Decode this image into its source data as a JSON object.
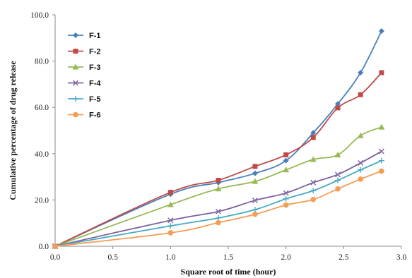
{
  "chart_data": {
    "type": "line",
    "title": "",
    "xlabel": "Square root of time (hour)",
    "ylabel": "Cumulative percentage of drug release",
    "xlim": [
      0,
      3
    ],
    "ylim": [
      0,
      100
    ],
    "x_ticks": [
      "0.0",
      "0.5",
      "1.0",
      "1.5",
      "2.0",
      "2.5",
      "3.0"
    ],
    "y_ticks": [
      "0.0",
      "20.0",
      "40.0",
      "60.0",
      "80.0",
      "100.0"
    ],
    "x_tick_values": [
      0,
      0.5,
      1,
      1.5,
      2,
      2.5,
      3
    ],
    "y_tick_values": [
      0,
      20,
      40,
      60,
      80,
      100
    ],
    "grid": false,
    "legend_position": "top-left",
    "x": [
      0,
      1.0,
      1.414,
      1.732,
      2.0,
      2.236,
      2.449,
      2.646,
      2.828
    ],
    "series": [
      {
        "name": "F-1",
        "color": "#4a7ebb",
        "marker": "diamond",
        "values": [
          0,
          22.5,
          27.5,
          31.5,
          37.0,
          49.0,
          61.5,
          75.0,
          93.0
        ]
      },
      {
        "name": "F-2",
        "color": "#be4b48",
        "marker": "square",
        "values": [
          0,
          23.3,
          28.5,
          34.5,
          39.5,
          47.0,
          59.8,
          65.5,
          75.0
        ]
      },
      {
        "name": "F-3",
        "color": "#98b954",
        "marker": "triangle",
        "values": [
          0,
          18.0,
          24.8,
          28.0,
          33.0,
          37.5,
          39.5,
          47.8,
          51.5
        ]
      },
      {
        "name": "F-4",
        "color": "#7d60a0",
        "marker": "x",
        "values": [
          0,
          11.2,
          15.0,
          19.8,
          23.0,
          27.5,
          31.0,
          36.0,
          41.0
        ]
      },
      {
        "name": "F-5",
        "color": "#46aac5",
        "marker": "plus",
        "values": [
          0,
          8.8,
          12.2,
          15.8,
          20.5,
          24.0,
          28.5,
          33.0,
          37.0
        ]
      },
      {
        "name": "F-6",
        "color": "#f59d56",
        "marker": "circle",
        "values": [
          0,
          5.8,
          10.2,
          13.8,
          17.8,
          20.2,
          24.8,
          29.0,
          32.5
        ]
      }
    ]
  }
}
